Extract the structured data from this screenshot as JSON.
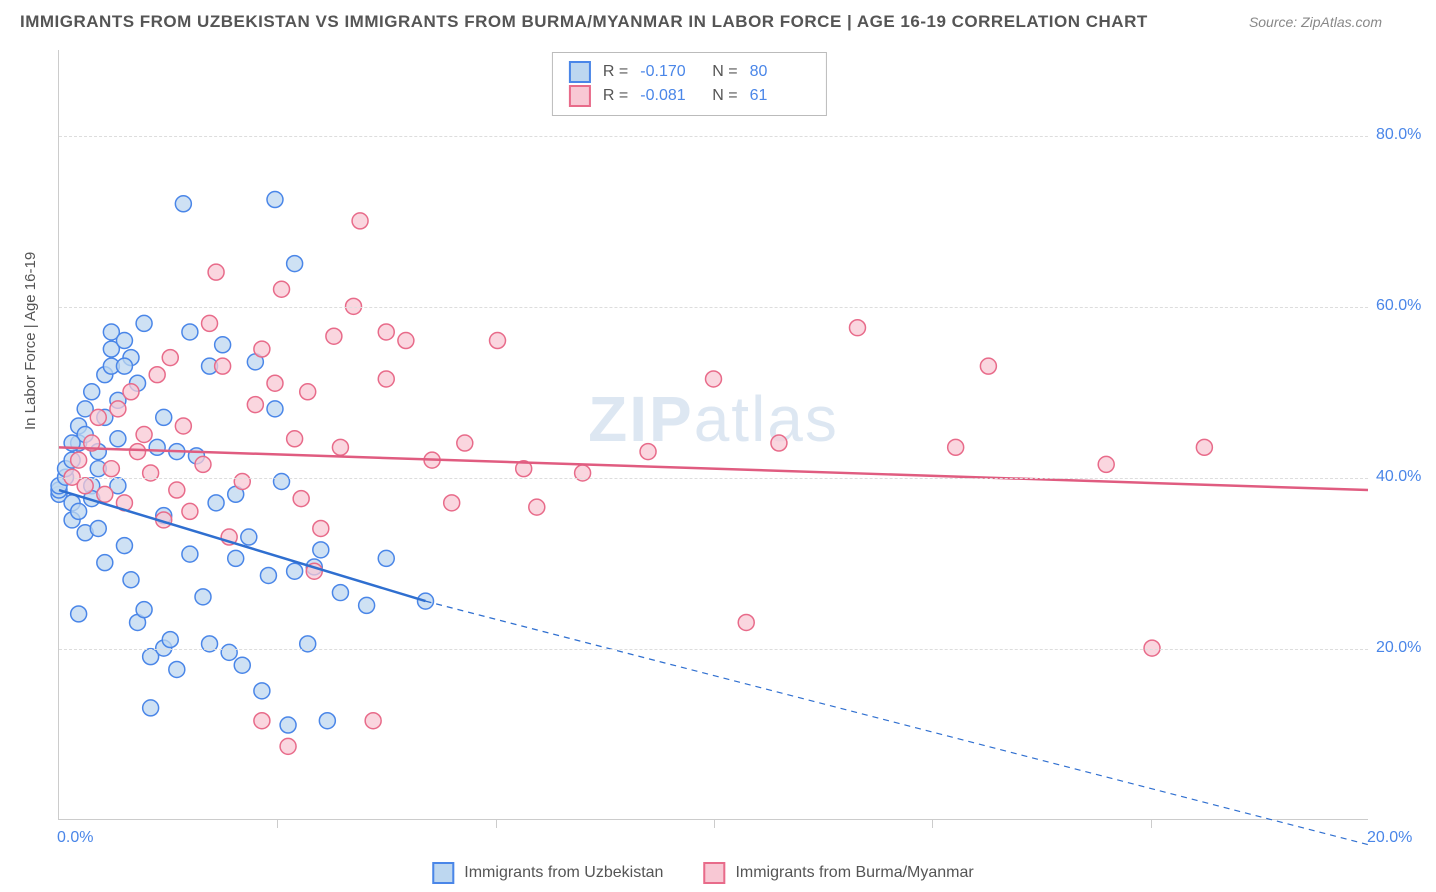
{
  "title": "IMMIGRANTS FROM UZBEKISTAN VS IMMIGRANTS FROM BURMA/MYANMAR IN LABOR FORCE | AGE 16-19 CORRELATION CHART",
  "source": "Source: ZipAtlas.com",
  "watermark": "ZIPatlas",
  "ylabel": "In Labor Force | Age 16-19",
  "chart": {
    "type": "scatter",
    "background_color": "#ffffff",
    "grid_color": "#dddddd",
    "xlim": [
      0,
      20
    ],
    "ylim": [
      0,
      90
    ],
    "ytick_labels": [
      "20.0%",
      "40.0%",
      "60.0%",
      "80.0%"
    ],
    "ytick_values": [
      20,
      40,
      60,
      80
    ],
    "xtick_labels": [
      "0.0%",
      "20.0%"
    ],
    "xtick_values": [
      0,
      20
    ],
    "xtick_minor": [
      3.33,
      6.67,
      10,
      13.33,
      16.67
    ],
    "legend_top": [
      {
        "color_fill": "#bdd7f0",
        "color_border": "#4a86e8",
        "r_label": "R =",
        "r_value": "-0.170",
        "n_label": "N =",
        "n_value": "80"
      },
      {
        "color_fill": "#f8c8d4",
        "color_border": "#e86b8a",
        "r_label": "R =",
        "r_value": "-0.081",
        "n_label": "N =",
        "n_value": "61"
      }
    ],
    "legend_bottom": [
      {
        "color_fill": "#bdd7f0",
        "color_border": "#4a86e8",
        "label": "Immigrants from Uzbekistan"
      },
      {
        "color_fill": "#f8c8d4",
        "color_border": "#e86b8a",
        "label": "Immigrants from Burma/Myanmar"
      }
    ],
    "series": [
      {
        "name": "uzbekistan",
        "marker_fill": "#bdd7f0",
        "marker_stroke": "#4a86e8",
        "marker_radius": 8,
        "marker_opacity": 0.75,
        "trend": {
          "x1": 0,
          "y1": 38.5,
          "x2": 5.6,
          "y2": 25.5,
          "color": "#2f6fd0",
          "width": 2.5,
          "dash_x2": 20,
          "dash_y2": -3
        },
        "points": [
          [
            0.0,
            38.0
          ],
          [
            0.0,
            38.5
          ],
          [
            0.0,
            39.0
          ],
          [
            0.1,
            40.0
          ],
          [
            0.1,
            41.0
          ],
          [
            0.2,
            37.0
          ],
          [
            0.2,
            42.0
          ],
          [
            0.2,
            35.0
          ],
          [
            0.3,
            44.0
          ],
          [
            0.3,
            36.0
          ],
          [
            0.3,
            46.0
          ],
          [
            0.4,
            33.5
          ],
          [
            0.4,
            45.0
          ],
          [
            0.4,
            48.0
          ],
          [
            0.5,
            39.0
          ],
          [
            0.5,
            37.5
          ],
          [
            0.5,
            50.0
          ],
          [
            0.6,
            43.0
          ],
          [
            0.6,
            34.0
          ],
          [
            0.6,
            41.0
          ],
          [
            0.7,
            52.0
          ],
          [
            0.7,
            47.0
          ],
          [
            0.7,
            30.0
          ],
          [
            0.8,
            55.0
          ],
          [
            0.8,
            53.0
          ],
          [
            0.8,
            57.0
          ],
          [
            0.9,
            49.0
          ],
          [
            0.9,
            44.5
          ],
          [
            1.0,
            56.0
          ],
          [
            1.0,
            32.0
          ],
          [
            1.1,
            54.0
          ],
          [
            1.1,
            28.0
          ],
          [
            1.2,
            51.0
          ],
          [
            1.2,
            23.0
          ],
          [
            1.3,
            58.0
          ],
          [
            1.3,
            24.5
          ],
          [
            1.4,
            19.0
          ],
          [
            1.4,
            13.0
          ],
          [
            1.5,
            43.5
          ],
          [
            1.6,
            35.5
          ],
          [
            1.6,
            20.0
          ],
          [
            1.7,
            21.0
          ],
          [
            1.8,
            17.5
          ],
          [
            1.9,
            72.0
          ],
          [
            2.0,
            31.0
          ],
          [
            2.1,
            42.5
          ],
          [
            2.2,
            26.0
          ],
          [
            2.3,
            20.5
          ],
          [
            2.4,
            37.0
          ],
          [
            2.5,
            55.5
          ],
          [
            2.6,
            19.5
          ],
          [
            2.7,
            30.5
          ],
          [
            2.8,
            18.0
          ],
          [
            2.9,
            33.0
          ],
          [
            3.0,
            53.5
          ],
          [
            3.1,
            15.0
          ],
          [
            3.2,
            28.5
          ],
          [
            3.3,
            72.5
          ],
          [
            3.4,
            39.5
          ],
          [
            3.5,
            11.0
          ],
          [
            3.6,
            29.0
          ],
          [
            3.6,
            65.0
          ],
          [
            3.8,
            20.5
          ],
          [
            3.9,
            29.5
          ],
          [
            4.0,
            31.5
          ],
          [
            4.1,
            11.5
          ],
          [
            4.3,
            26.5
          ],
          [
            4.7,
            25.0
          ],
          [
            5.0,
            30.5
          ],
          [
            5.6,
            25.5
          ],
          [
            2.0,
            57.0
          ],
          [
            2.3,
            53.0
          ],
          [
            1.0,
            53.0
          ],
          [
            0.2,
            44.0
          ],
          [
            0.9,
            39.0
          ],
          [
            0.3,
            24.0
          ],
          [
            1.8,
            43.0
          ],
          [
            2.7,
            38.0
          ],
          [
            3.3,
            48.0
          ],
          [
            1.6,
            47.0
          ]
        ]
      },
      {
        "name": "burma",
        "marker_fill": "#f8c8d4",
        "marker_stroke": "#e86b8a",
        "marker_radius": 8,
        "marker_opacity": 0.75,
        "trend": {
          "x1": 0,
          "y1": 43.5,
          "x2": 20,
          "y2": 38.5,
          "color": "#e05c80",
          "width": 2.5
        },
        "points": [
          [
            0.2,
            40.0
          ],
          [
            0.3,
            42.0
          ],
          [
            0.4,
            39.0
          ],
          [
            0.5,
            44.0
          ],
          [
            0.6,
            47.0
          ],
          [
            0.7,
            38.0
          ],
          [
            0.8,
            41.0
          ],
          [
            0.9,
            48.0
          ],
          [
            1.0,
            37.0
          ],
          [
            1.1,
            50.0
          ],
          [
            1.2,
            43.0
          ],
          [
            1.3,
            45.0
          ],
          [
            1.4,
            40.5
          ],
          [
            1.5,
            52.0
          ],
          [
            1.6,
            35.0
          ],
          [
            1.7,
            54.0
          ],
          [
            1.8,
            38.5
          ],
          [
            1.9,
            46.0
          ],
          [
            2.0,
            36.0
          ],
          [
            2.2,
            41.5
          ],
          [
            2.3,
            58.0
          ],
          [
            2.4,
            64.0
          ],
          [
            2.5,
            53.0
          ],
          [
            2.6,
            33.0
          ],
          [
            2.8,
            39.5
          ],
          [
            3.0,
            48.5
          ],
          [
            3.1,
            55.0
          ],
          [
            3.3,
            51.0
          ],
          [
            3.4,
            62.0
          ],
          [
            3.6,
            44.5
          ],
          [
            3.7,
            37.5
          ],
          [
            3.8,
            50.0
          ],
          [
            3.9,
            29.0
          ],
          [
            4.0,
            34.0
          ],
          [
            4.2,
            56.5
          ],
          [
            4.3,
            43.5
          ],
          [
            4.5,
            60.0
          ],
          [
            4.6,
            70.0
          ],
          [
            4.8,
            11.5
          ],
          [
            5.0,
            57.0
          ],
          [
            5.0,
            51.5
          ],
          [
            5.3,
            56.0
          ],
          [
            5.7,
            42.0
          ],
          [
            6.0,
            37.0
          ],
          [
            6.2,
            44.0
          ],
          [
            6.7,
            56.0
          ],
          [
            7.1,
            41.0
          ],
          [
            7.3,
            36.5
          ],
          [
            8.0,
            40.5
          ],
          [
            3.5,
            8.5
          ],
          [
            9.0,
            43.0
          ],
          [
            10.0,
            51.5
          ],
          [
            10.5,
            23.0
          ],
          [
            11.0,
            44.0
          ],
          [
            12.2,
            57.5
          ],
          [
            13.7,
            43.5
          ],
          [
            14.2,
            53.0
          ],
          [
            16.0,
            41.5
          ],
          [
            16.7,
            20.0
          ],
          [
            17.5,
            43.5
          ],
          [
            3.1,
            11.5
          ]
        ]
      }
    ]
  }
}
